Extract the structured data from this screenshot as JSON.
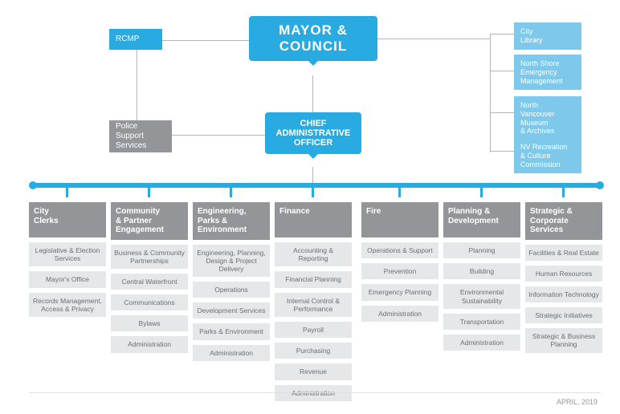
{
  "colors": {
    "primary": "#29abe2",
    "light": "#7ec9eb",
    "grey": "#939598",
    "subBg": "#e6e7e8",
    "subText": "#6d6e71"
  },
  "mayor": {
    "line1": "MAYOR &",
    "line2": "COUNCIL"
  },
  "cao": {
    "line1": "CHIEF",
    "line2": "ADMINISTRATIVE",
    "line3": "OFFICER"
  },
  "rcmp": "RCMP",
  "police": "Police\nSupport\nServices",
  "right": [
    {
      "label": "City\nLibrary"
    },
    {
      "label": "North Shore\nEmergency\nManagement"
    },
    {
      "label": "North\nVancouver\nMuseum\n& Archives"
    },
    {
      "label": "NV Recreation\n& Culture\nCommission"
    }
  ],
  "departments": [
    {
      "head": "City\nClerks",
      "subs": [
        "Legislative & Election Services",
        "Mayor's Office",
        "Records Management, Access & Privacy"
      ]
    },
    {
      "head": "Community\n& Partner\nEngagement",
      "subs": [
        "Business & Community Partnerships",
        "Central Waterfront",
        "Communications",
        "Bylaws",
        "Administration"
      ]
    },
    {
      "head": "Engineering,\nParks &\nEnvironment",
      "subs": [
        "Engineering, Planning, Design & Project Delivery",
        "Operations",
        "Development Services",
        "Parks & Environment",
        "Administration"
      ]
    },
    {
      "head": "Finance",
      "subs": [
        "Accounting & Reporting",
        "Financial Planning",
        "Internal Control & Performance",
        "Payroll",
        "Purchasing",
        "Revenue",
        "Administration"
      ]
    },
    {
      "head": "Fire",
      "subs": [
        "Operations & Support",
        "Prevention",
        "Emergency Planning",
        "Administration"
      ]
    },
    {
      "head": "Planning &\nDevelopment",
      "subs": [
        "Planning",
        "Building",
        "Environmental Sustainability",
        "Transportation",
        "Administration"
      ]
    },
    {
      "head": "Strategic &\nCorporate\nServices",
      "subs": [
        "Facilities & Real Estate",
        "Human Resources",
        "Information Technology",
        "Strategic Initiatives",
        "Strategic & Business Planning"
      ]
    }
  ],
  "footer": "APRIL, 2019"
}
